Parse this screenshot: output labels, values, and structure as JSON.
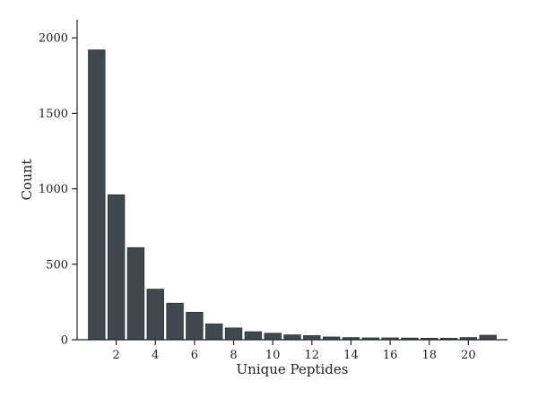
{
  "chart_data": {
    "type": "bar",
    "title": "",
    "xlabel": "Unique Peptides",
    "ylabel": "Count",
    "categories": [
      1,
      2,
      3,
      4,
      5,
      6,
      7,
      8,
      9,
      10,
      11,
      12,
      13,
      14,
      15,
      16,
      17,
      18,
      19,
      20,
      21
    ],
    "values": [
      1920,
      960,
      610,
      335,
      242,
      182,
      105,
      78,
      53,
      43,
      32,
      27,
      18,
      14,
      12,
      12,
      11,
      10,
      10,
      14,
      30
    ],
    "x_ticks": [
      "2",
      "4",
      "6",
      "8",
      "10",
      "12",
      "14",
      "16",
      "18",
      "20"
    ],
    "x_tick_values": [
      2,
      4,
      6,
      8,
      10,
      12,
      14,
      16,
      18,
      20
    ],
    "y_ticks": [
      "0",
      "500",
      "1000",
      "1500",
      "2000"
    ],
    "y_tick_values": [
      0,
      500,
      1000,
      1500,
      2000
    ],
    "ylim": [
      0,
      2120
    ],
    "xlim": [
      0,
      22
    ],
    "grid": false,
    "colors": {
      "bar": "#40484d",
      "bar_edge": "#2c3236",
      "axis": "#222222"
    }
  }
}
